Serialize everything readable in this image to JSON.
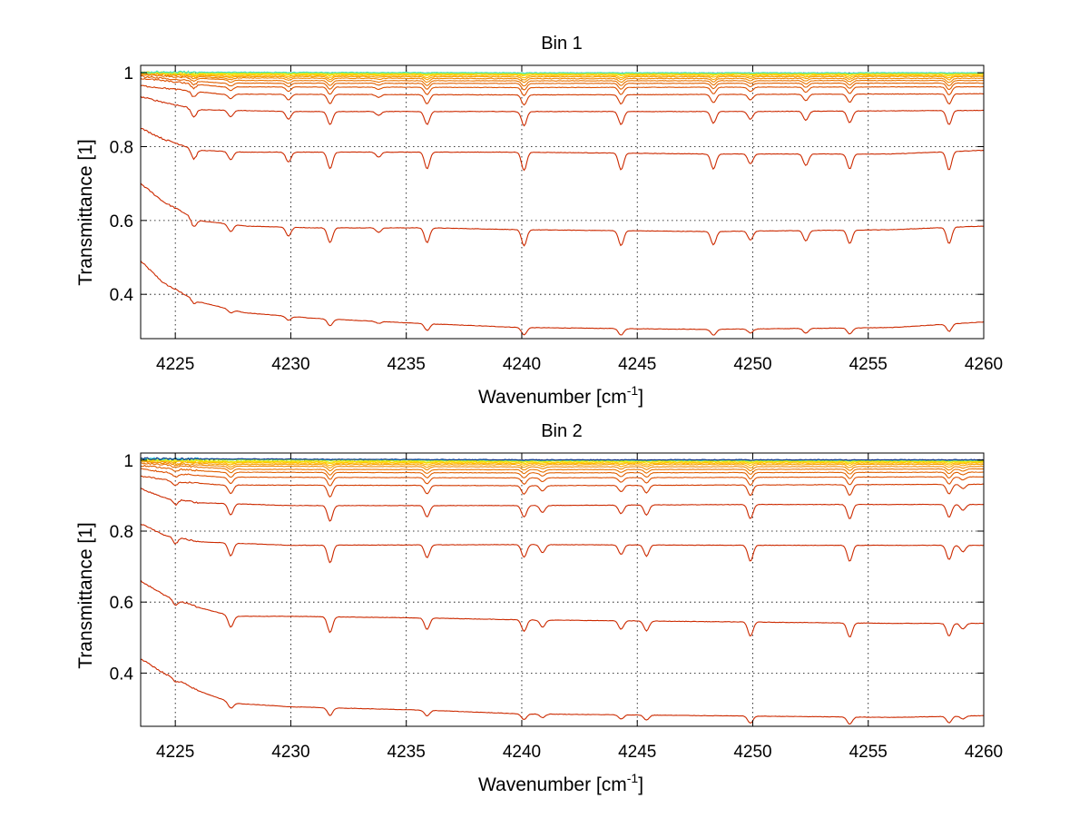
{
  "chart_data": [
    {
      "type": "line",
      "title": "Bin 1",
      "xlabel": "Wavenumber [cm",
      "xlabel_sup": "-1",
      "xlabel_end": "]",
      "ylabel": "Transmittance [1]",
      "xlim": [
        4223.5,
        4260
      ],
      "ylim": [
        0.28,
        1.02
      ],
      "xticks": [
        4225,
        4230,
        4235,
        4240,
        4245,
        4250,
        4255,
        4260
      ],
      "xtick_labels": [
        "4225",
        "4230",
        "4235",
        "4240",
        "4245",
        "4250",
        "4255",
        "4260"
      ],
      "yticks": [
        0.4,
        0.6,
        0.8,
        1.0
      ],
      "ytick_labels": [
        "0.4",
        "0.6",
        "0.8",
        "1"
      ],
      "grid": true,
      "absorption_lines": [
        {
          "x": 4225.8,
          "depth": 0.6
        },
        {
          "x": 4227.4,
          "depth": 0.5
        },
        {
          "x": 4229.9,
          "depth": 0.6
        },
        {
          "x": 4231.7,
          "depth": 1.0
        },
        {
          "x": 4233.8,
          "depth": 0.3
        },
        {
          "x": 4235.9,
          "depth": 1.0
        },
        {
          "x": 4240.1,
          "depth": 1.1
        },
        {
          "x": 4244.3,
          "depth": 1.0
        },
        {
          "x": 4248.3,
          "depth": 0.9
        },
        {
          "x": 4249.9,
          "depth": 0.6
        },
        {
          "x": 4252.3,
          "depth": 0.7
        },
        {
          "x": 4254.2,
          "depth": 0.9
        },
        {
          "x": 4258.5,
          "depth": 1.1
        }
      ],
      "series": [
        {
          "color": "#cc2a00",
          "values": [
            [
              4223.5,
              0.49
            ],
            [
              4224.5,
              0.43
            ],
            [
              4226,
              0.38
            ],
            [
              4228,
              0.35
            ],
            [
              4231,
              0.335
            ],
            [
              4236,
              0.32
            ],
            [
              4240,
              0.31
            ],
            [
              4248,
              0.305
            ],
            [
              4256,
              0.31
            ],
            [
              4260,
              0.325
            ]
          ],
          "dip": 0.018
        },
        {
          "color": "#cc2a00",
          "values": [
            [
              4223.5,
              0.7
            ],
            [
              4224.5,
              0.65
            ],
            [
              4226,
              0.6
            ],
            [
              4228,
              0.585
            ],
            [
              4231,
              0.58
            ],
            [
              4236,
              0.58
            ],
            [
              4240,
              0.575
            ],
            [
              4248,
              0.57
            ],
            [
              4256,
              0.575
            ],
            [
              4260,
              0.585
            ]
          ],
          "dip": 0.04
        },
        {
          "color": "#cc2a00",
          "values": [
            [
              4223.5,
              0.85
            ],
            [
              4224.5,
              0.82
            ],
            [
              4226,
              0.79
            ],
            [
              4228,
              0.785
            ],
            [
              4231,
              0.785
            ],
            [
              4236,
              0.785
            ],
            [
              4240,
              0.785
            ],
            [
              4248,
              0.78
            ],
            [
              4256,
              0.78
            ],
            [
              4260,
              0.79
            ]
          ],
          "dip": 0.045
        },
        {
          "color": "#cc2a00",
          "values": [
            [
              4223.5,
              0.935
            ],
            [
              4224.5,
              0.92
            ],
            [
              4226,
              0.9
            ],
            [
              4230,
              0.895
            ],
            [
              4240,
              0.895
            ],
            [
              4250,
              0.895
            ],
            [
              4260,
              0.898
            ]
          ],
          "dip": 0.035
        },
        {
          "color": "#d23a00",
          "values": [
            [
              4223.5,
              0.965
            ],
            [
              4225,
              0.955
            ],
            [
              4227,
              0.942
            ],
            [
              4240,
              0.94
            ],
            [
              4260,
              0.943
            ]
          ],
          "dip": 0.025
        },
        {
          "color": "#dd5000",
          "values": [
            [
              4223.5,
              0.985
            ],
            [
              4225,
              0.975
            ],
            [
              4227,
              0.962
            ],
            [
              4240,
              0.96
            ],
            [
              4260,
              0.962
            ]
          ],
          "dip": 0.02
        },
        {
          "color": "#e06000",
          "values": [
            [
              4223.5,
              0.99
            ],
            [
              4225,
              0.982
            ],
            [
              4227,
              0.972
            ],
            [
              4240,
              0.971
            ],
            [
              4260,
              0.972
            ]
          ],
          "dip": 0.016
        },
        {
          "color": "#e87300",
          "values": [
            [
              4223.5,
              0.995
            ],
            [
              4226,
              0.985
            ],
            [
              4228,
              0.979
            ],
            [
              4240,
              0.978
            ],
            [
              4260,
              0.979
            ]
          ],
          "dip": 0.013
        },
        {
          "color": "#f08800",
          "values": [
            [
              4223.5,
              0.998
            ],
            [
              4227,
              0.986
            ],
            [
              4240,
              0.984
            ],
            [
              4260,
              0.985
            ]
          ],
          "dip": 0.01
        },
        {
          "color": "#f7a000",
          "values": [
            [
              4223.5,
              1.0
            ],
            [
              4227,
              0.99
            ],
            [
              4240,
              0.989
            ],
            [
              4260,
              0.99
            ]
          ],
          "dip": 0.008
        },
        {
          "color": "#ffb800",
          "values": [
            [
              4223.5,
              1.0
            ],
            [
              4227,
              0.993
            ],
            [
              4240,
              0.993
            ],
            [
              4260,
              0.993
            ]
          ],
          "dip": 0.006
        },
        {
          "color": "#ffd000",
          "values": [
            [
              4223.5,
              1.0
            ],
            [
              4227,
              0.996
            ],
            [
              4240,
              0.996
            ],
            [
              4260,
              0.996
            ]
          ],
          "dip": 0.004
        },
        {
          "color": "#e8e800",
          "values": [
            [
              4223.5,
              1.0
            ],
            [
              4227,
              0.998
            ],
            [
              4240,
              0.998
            ],
            [
              4260,
              0.998
            ]
          ],
          "dip": 0.003
        },
        {
          "color": "#b8f040",
          "values": [
            [
              4223.5,
              1.0
            ],
            [
              4240,
              0.999
            ],
            [
              4260,
              0.999
            ]
          ],
          "dip": 0.002
        },
        {
          "color": "#40e0c0",
          "values": [
            [
              4223.5,
              1.002
            ],
            [
              4240,
              1.0
            ],
            [
              4260,
              1.0
            ]
          ],
          "dip": 0.001
        }
      ]
    },
    {
      "type": "line",
      "title": "Bin 2",
      "xlabel": "Wavenumber [cm",
      "xlabel_sup": "-1",
      "xlabel_end": "]",
      "ylabel": "Transmittance [1]",
      "xlim": [
        4223.5,
        4260
      ],
      "ylim": [
        0.25,
        1.02
      ],
      "xticks": [
        4225,
        4230,
        4235,
        4240,
        4245,
        4250,
        4255,
        4260
      ],
      "xtick_labels": [
        "4225",
        "4230",
        "4235",
        "4240",
        "4245",
        "4250",
        "4255",
        "4260"
      ],
      "yticks": [
        0.4,
        0.6,
        0.8,
        1.0
      ],
      "ytick_labels": [
        "0.4",
        "0.6",
        "0.8",
        "1"
      ],
      "grid": true,
      "absorption_lines": [
        {
          "x": 4225.0,
          "depth": 0.4
        },
        {
          "x": 4227.4,
          "depth": 0.8
        },
        {
          "x": 4231.7,
          "depth": 1.1
        },
        {
          "x": 4235.9,
          "depth": 0.8
        },
        {
          "x": 4240.1,
          "depth": 0.8
        },
        {
          "x": 4240.9,
          "depth": 0.5
        },
        {
          "x": 4244.3,
          "depth": 0.6
        },
        {
          "x": 4245.4,
          "depth": 0.7
        },
        {
          "x": 4249.9,
          "depth": 1.0
        },
        {
          "x": 4254.2,
          "depth": 1.0
        },
        {
          "x": 4258.5,
          "depth": 0.9
        },
        {
          "x": 4259.1,
          "depth": 0.4
        }
      ],
      "series": [
        {
          "color": "#cc2a00",
          "values": [
            [
              4223.5,
              0.44
            ],
            [
              4224.5,
              0.4
            ],
            [
              4226,
              0.35
            ],
            [
              4227.5,
              0.315
            ],
            [
              4230,
              0.305
            ],
            [
              4236,
              0.295
            ],
            [
              4240,
              0.285
            ],
            [
              4248,
              0.28
            ],
            [
              4256,
              0.275
            ],
            [
              4260,
              0.28
            ]
          ],
          "dip": 0.02
        },
        {
          "color": "#cc2a00",
          "values": [
            [
              4223.5,
              0.66
            ],
            [
              4224.5,
              0.62
            ],
            [
              4226,
              0.585
            ],
            [
              4227.5,
              0.56
            ],
            [
              4230,
              0.56
            ],
            [
              4236,
              0.555
            ],
            [
              4240,
              0.55
            ],
            [
              4248,
              0.545
            ],
            [
              4256,
              0.54
            ],
            [
              4260,
              0.54
            ]
          ],
          "dip": 0.04
        },
        {
          "color": "#cc2a00",
          "values": [
            [
              4223.5,
              0.82
            ],
            [
              4224.5,
              0.79
            ],
            [
              4226,
              0.77
            ],
            [
              4230,
              0.76
            ],
            [
              4240,
              0.762
            ],
            [
              4250,
              0.76
            ],
            [
              4260,
              0.76
            ]
          ],
          "dip": 0.045
        },
        {
          "color": "#cc2a00",
          "values": [
            [
              4223.5,
              0.92
            ],
            [
              4224.5,
              0.895
            ],
            [
              4226,
              0.88
            ],
            [
              4230,
              0.872
            ],
            [
              4240,
              0.872
            ],
            [
              4250,
              0.875
            ],
            [
              4260,
              0.875
            ]
          ],
          "dip": 0.04
        },
        {
          "color": "#d23a00",
          "values": [
            [
              4223.5,
              0.955
            ],
            [
              4225,
              0.94
            ],
            [
              4227,
              0.93
            ],
            [
              4240,
              0.928
            ],
            [
              4260,
              0.932
            ]
          ],
          "dip": 0.03
        },
        {
          "color": "#dd5000",
          "values": [
            [
              4223.5,
              0.975
            ],
            [
              4225,
              0.962
            ],
            [
              4227,
              0.952
            ],
            [
              4240,
              0.95
            ],
            [
              4260,
              0.953
            ]
          ],
          "dip": 0.022
        },
        {
          "color": "#e06000",
          "values": [
            [
              4223.5,
              0.985
            ],
            [
              4225,
              0.975
            ],
            [
              4227,
              0.966
            ],
            [
              4240,
              0.964
            ],
            [
              4260,
              0.966
            ]
          ],
          "dip": 0.018
        },
        {
          "color": "#e87300",
          "values": [
            [
              4223.5,
              0.992
            ],
            [
              4226,
              0.98
            ],
            [
              4228,
              0.974
            ],
            [
              4240,
              0.973
            ],
            [
              4260,
              0.975
            ]
          ],
          "dip": 0.014
        },
        {
          "color": "#f08800",
          "values": [
            [
              4223.5,
              0.996
            ],
            [
              4227,
              0.983
            ],
            [
              4240,
              0.981
            ],
            [
              4260,
              0.982
            ]
          ],
          "dip": 0.011
        },
        {
          "color": "#f7a000",
          "values": [
            [
              4223.5,
              0.998
            ],
            [
              4227,
              0.988
            ],
            [
              4240,
              0.987
            ],
            [
              4260,
              0.988
            ]
          ],
          "dip": 0.009
        },
        {
          "color": "#ffb800",
          "values": [
            [
              4223.5,
              1.0
            ],
            [
              4227,
              0.992
            ],
            [
              4240,
              0.991
            ],
            [
              4260,
              0.992
            ]
          ],
          "dip": 0.006
        },
        {
          "color": "#ffd000",
          "values": [
            [
              4223.5,
              1.0
            ],
            [
              4227,
              0.995
            ],
            [
              4240,
              0.994
            ],
            [
              4260,
              0.995
            ]
          ],
          "dip": 0.004
        },
        {
          "color": "#e8e800",
          "values": [
            [
              4223.5,
              1.0
            ],
            [
              4227,
              0.997
            ],
            [
              4240,
              0.997
            ],
            [
              4260,
              0.997
            ]
          ],
          "dip": 0.003
        },
        {
          "color": "#b8f040",
          "values": [
            [
              4223.5,
              1.002
            ],
            [
              4240,
              0.999
            ],
            [
              4260,
              0.999
            ]
          ],
          "dip": 0.002
        },
        {
          "color": "#20c8e0",
          "values": [
            [
              4223.5,
              1.004
            ],
            [
              4240,
              1.0
            ],
            [
              4260,
              1.0
            ]
          ],
          "dip": 0.001
        },
        {
          "color": "#103080",
          "values": [
            [
              4223.5,
              1.004
            ],
            [
              4240,
              1.001
            ],
            [
              4260,
              1.001
            ]
          ],
          "dip": 0.001
        }
      ]
    }
  ]
}
